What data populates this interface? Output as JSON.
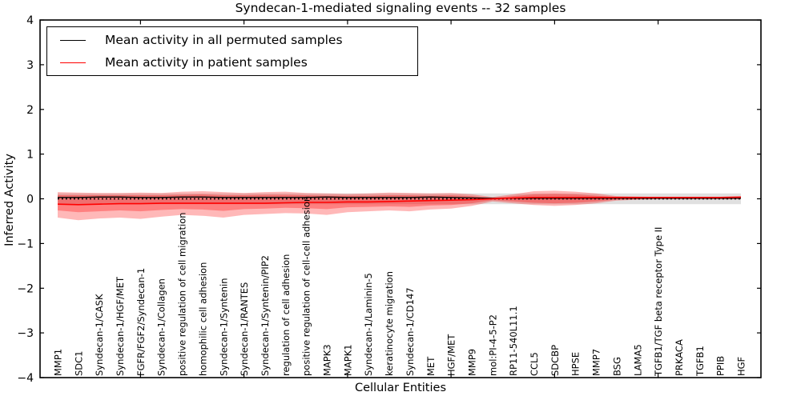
{
  "chart_data": {
    "type": "line",
    "title": "Syndecan-1-mediated signaling events -- 32 samples",
    "xlabel": "Cellular Entities",
    "ylabel": "Inferred Activity",
    "ylim": [
      -4,
      4
    ],
    "yticks": [
      -4,
      -3,
      -2,
      -1,
      0,
      1,
      2,
      3,
      4
    ],
    "xtick_indices": [
      4,
      9,
      14,
      19,
      24,
      29
    ],
    "grid": false,
    "legend_position": "upper left",
    "categories": [
      "MMP1",
      "SDC1",
      "Syndecan-1/CASK",
      "Syndecan-1/HGF/MET",
      "FGFR/FGF2/Syndecan-1",
      "Syndecan-1/Collagen",
      "positive regulation of cell migration",
      "homophilic cell adhesion",
      "Syndecan-1/Syntenin",
      "Syndecan-1/RANTES",
      "Syndecan-1/Syntenin/PIP2",
      "regulation of cell adhesion",
      "positive regulation of cell-cell adhesion",
      "MAPK3",
      "MAPK1",
      "Syndecan-1/Laminin-5",
      "keratinocyte migration",
      "Syndecan-1/CD147",
      "MET",
      "HGF/MET",
      "MMP9",
      "mol:PI-4-5-P2",
      "RP11-540L11.1",
      "CCL5",
      "SDCBP",
      "HPSE",
      "MMP7",
      "BSG",
      "LAMA5",
      "TGFB1/TGF beta receptor Type II",
      "PRKACA",
      "TGFB1",
      "PPIB",
      "HGF"
    ],
    "zero_reference_line": {
      "value": 0,
      "color": "#000000",
      "style": "dotted"
    },
    "series": [
      {
        "name": "Mean activity in all permuted samples",
        "color": "#000000",
        "style": "solid",
        "values": [
          0.03,
          0.03,
          0.04,
          0.04,
          0.03,
          0.03,
          0.04,
          0.04,
          0.03,
          0.03,
          0.03,
          0.03,
          0.03,
          0.04,
          0.03,
          0.03,
          0.03,
          0.03,
          0.04,
          0.03,
          0.02,
          0.01,
          0.01,
          0.01,
          0.01,
          0.01,
          0.01,
          0.01,
          0.01,
          0.01,
          0.01,
          0.01,
          0.01,
          0.01
        ]
      },
      {
        "name": "Mean activity in patient samples",
        "color": "#ff0000",
        "style": "solid",
        "values": [
          -0.12,
          -0.13,
          -0.12,
          -0.11,
          -0.11,
          -0.1,
          -0.1,
          -0.1,
          -0.1,
          -0.1,
          -0.1,
          -0.09,
          -0.08,
          -0.08,
          -0.07,
          -0.07,
          -0.06,
          -0.05,
          -0.04,
          -0.03,
          -0.02,
          0.0,
          0.02,
          0.03,
          0.03,
          0.03,
          0.03,
          0.03,
          0.03,
          0.03,
          0.03,
          0.03,
          0.03,
          0.04
        ]
      }
    ],
    "bands": [
      {
        "name": "permuted-samples-range",
        "color": "#bbbbbb",
        "opacity": 0.45,
        "center": 0,
        "halfwidth": 0.12
      },
      {
        "name": "patient-samples-outer-band",
        "color": "#ff0000",
        "opacity": 0.28,
        "top": [
          0.15,
          0.14,
          0.13,
          0.13,
          0.14,
          0.13,
          0.16,
          0.17,
          0.15,
          0.13,
          0.15,
          0.16,
          0.13,
          0.12,
          0.11,
          0.12,
          0.14,
          0.13,
          0.12,
          0.13,
          0.1,
          0.04,
          0.1,
          0.17,
          0.18,
          0.16,
          0.12,
          0.06,
          0.05,
          0.04,
          0.04,
          0.04,
          0.04,
          0.04
        ],
        "bottom": [
          -0.42,
          -0.48,
          -0.44,
          -0.42,
          -0.45,
          -0.4,
          -0.36,
          -0.38,
          -0.42,
          -0.36,
          -0.34,
          -0.32,
          -0.33,
          -0.36,
          -0.3,
          -0.28,
          -0.26,
          -0.28,
          -0.24,
          -0.22,
          -0.16,
          -0.06,
          -0.1,
          -0.14,
          -0.16,
          -0.14,
          -0.1,
          -0.04,
          -0.02,
          -0.01,
          -0.01,
          -0.01,
          -0.01,
          -0.01
        ]
      },
      {
        "name": "patient-samples-inner-band",
        "color": "#ff0000",
        "opacity": 0.3,
        "top": [
          0.08,
          0.08,
          0.08,
          0.08,
          0.08,
          0.08,
          0.09,
          0.1,
          0.08,
          0.08,
          0.09,
          0.09,
          0.08,
          0.07,
          0.07,
          0.07,
          0.08,
          0.08,
          0.07,
          0.08,
          0.06,
          0.02,
          0.06,
          0.1,
          0.11,
          0.1,
          0.07,
          0.04,
          0.03,
          0.03,
          0.03,
          0.03,
          0.03,
          0.03
        ],
        "bottom": [
          -0.26,
          -0.3,
          -0.28,
          -0.26,
          -0.28,
          -0.25,
          -0.23,
          -0.24,
          -0.27,
          -0.23,
          -0.22,
          -0.2,
          -0.21,
          -0.23,
          -0.19,
          -0.18,
          -0.17,
          -0.18,
          -0.15,
          -0.14,
          -0.1,
          -0.03,
          -0.06,
          -0.09,
          -0.1,
          -0.09,
          -0.06,
          -0.02,
          -0.01,
          0.0,
          0.0,
          0.0,
          0.0,
          0.0
        ]
      }
    ]
  },
  "legend": {
    "entries": [
      {
        "label": "Mean activity in all permuted samples",
        "color": "#000000"
      },
      {
        "label": "Mean activity in patient samples",
        "color": "#ff0000"
      }
    ]
  }
}
